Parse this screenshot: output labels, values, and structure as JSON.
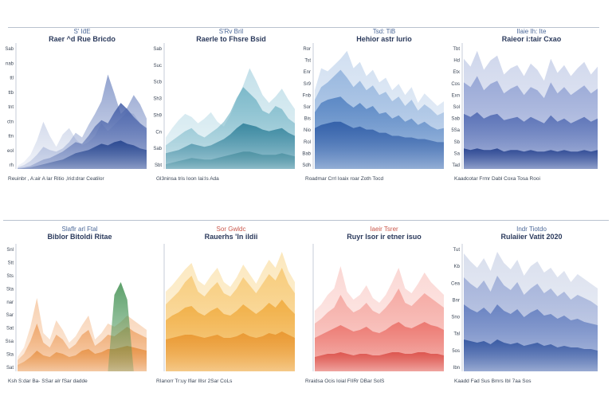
{
  "page": {
    "background": "#ffffff",
    "divider_color": "#b9c2cf"
  },
  "chart_data": [
    {
      "type": "area",
      "row": 1,
      "title_small": "S' Id̈E",
      "title": "Raer ^d Rue Bricdo",
      "title_color": "#2b4d86",
      "ytick_labels": [
        "Sab",
        "nab",
        "ttl",
        "ttb",
        "tnt",
        "ctn",
        "ttn",
        "eol",
        "rh"
      ],
      "xlabel": "Reuinbr , A:air A lar Ritio ,Irid:drar Ceatilor",
      "colors": [
        "#c7d0e6",
        "#7f93c7",
        "#3f5aa5",
        "#1f3f8a"
      ],
      "x": [
        0,
        1,
        2,
        3,
        4,
        5,
        6,
        7,
        8,
        9,
        10,
        11,
        12,
        13,
        14,
        15,
        16,
        17,
        18,
        19,
        20
      ],
      "series": [
        {
          "values": [
            4,
            9,
            18,
            36,
            60,
            42,
            28,
            44,
            52,
            38,
            30,
            34,
            42,
            58,
            48,
            56,
            64,
            72,
            70,
            58,
            48
          ]
        },
        {
          "values": [
            2,
            5,
            10,
            18,
            28,
            24,
            22,
            26,
            34,
            46,
            40,
            56,
            70,
            86,
            120,
            96,
            70,
            78,
            94,
            82,
            64
          ]
        },
        {
          "values": [
            1,
            2,
            4,
            8,
            12,
            14,
            18,
            22,
            28,
            34,
            32,
            42,
            54,
            62,
            58,
            72,
            84,
            76,
            66,
            58,
            52
          ]
        },
        {
          "values": [
            0,
            1,
            2,
            4,
            6,
            8,
            10,
            12,
            16,
            20,
            22,
            24,
            28,
            32,
            30,
            34,
            36,
            32,
            30,
            26,
            24
          ]
        }
      ]
    },
    {
      "type": "area",
      "row": 1,
      "title_small": "S'Rv Bril",
      "title": "Raerle to Fhsre Bsid",
      "title_color": "#2b4d86",
      "ytick_labels": [
        "Sab",
        "Suc",
        "Scb",
        "Sh3",
        "Sh9",
        "Cn",
        "Sab",
        "Sbt"
      ],
      "xlabel": "Gl3ninsa    tris    Ioon    Iai:ls    Ada",
      "colors": [
        "#b9dbe6",
        "#6fb2c4",
        "#2b7d97",
        "#4a8fa0"
      ],
      "x": [
        0,
        1,
        2,
        3,
        4,
        5,
        6,
        7,
        8,
        9,
        10,
        11,
        12,
        13,
        14,
        15,
        16,
        17,
        18,
        19,
        20
      ],
      "series": [
        {
          "values": [
            40,
            52,
            62,
            70,
            66,
            58,
            64,
            72,
            60,
            54,
            68,
            88,
            106,
            128,
            112,
            94,
            84,
            92,
            102,
            88,
            76
          ]
        },
        {
          "values": [
            30,
            36,
            42,
            48,
            52,
            44,
            40,
            46,
            52,
            60,
            72,
            90,
            104,
            96,
            88,
            74,
            70,
            80,
            76,
            64,
            58
          ]
        },
        {
          "values": [
            20,
            22,
            24,
            28,
            32,
            30,
            28,
            30,
            34,
            38,
            44,
            52,
            58,
            56,
            54,
            50,
            48,
            50,
            52,
            46,
            42
          ]
        },
        {
          "values": [
            6,
            8,
            10,
            12,
            14,
            13,
            12,
            12,
            14,
            16,
            18,
            20,
            22,
            22,
            20,
            18,
            18,
            18,
            20,
            18,
            16
          ]
        }
      ]
    },
    {
      "type": "area",
      "row": 1,
      "title_small": "Tsd: TiB",
      "title": "Hehior astr lurio",
      "title_color": "#2b4d86",
      "ytick_labels": [
        "Ror",
        "Tst",
        "Enr",
        "Sr9",
        "Fnb",
        "Sor",
        "Bis",
        "Nio",
        "Rol",
        "Bab",
        "Sdh"
      ],
      "xlabel": "Roadmar   Crrl   Ioaix   roar   Zoth   Tocd",
      "colors": [
        "#c8d9ee",
        "#8fb1dc",
        "#4f7fc0",
        "#2a58a4"
      ],
      "x": [
        0,
        1,
        2,
        3,
        4,
        5,
        6,
        7,
        8,
        9,
        10,
        11,
        12,
        13,
        14,
        15,
        16,
        17,
        18,
        19,
        20
      ],
      "series": [
        {
          "values": [
            100,
            128,
            124,
            132,
            140,
            150,
            128,
            136,
            118,
            126,
            110,
            116,
            100,
            108,
            94,
            104,
            84,
            96,
            88,
            80,
            86
          ]
        },
        {
          "values": [
            88,
            104,
            110,
            118,
            126,
            116,
            104,
            112,
            100,
            106,
            94,
            98,
            86,
            92,
            80,
            88,
            74,
            82,
            76,
            68,
            72
          ]
        },
        {
          "values": [
            72,
            84,
            88,
            90,
            92,
            84,
            78,
            84,
            76,
            80,
            70,
            72,
            64,
            68,
            60,
            64,
            56,
            60,
            54,
            50,
            52
          ]
        },
        {
          "values": [
            52,
            56,
            58,
            60,
            60,
            56,
            52,
            54,
            50,
            50,
            46,
            46,
            42,
            42,
            40,
            40,
            38,
            38,
            36,
            34,
            34
          ]
        }
      ]
    },
    {
      "type": "area",
      "row": 1,
      "title_small": "Ilaie Ih: Ite",
      "title": "Raieor i:tair Cxao",
      "title_color": "#2b4d86",
      "ytick_labels": [
        "Tbt",
        "Hd",
        "Etx",
        "Cos",
        "Exn",
        "Sol",
        "Sab",
        "5Sa",
        "Sb",
        "Sa",
        "Tad"
      ],
      "xlabel": "Kaadcotar   Frmr   Dabl   Coxa   Tosa   Rooi",
      "colors": [
        "#c6cfe8",
        "#8e9fd2",
        "#4c66b0",
        "#1f3c8a"
      ],
      "x": [
        0,
        1,
        2,
        3,
        4,
        5,
        6,
        7,
        8,
        9,
        10,
        11,
        12,
        13,
        14,
        15,
        16,
        17,
        18,
        19,
        20
      ],
      "series": [
        {
          "values": [
            140,
            130,
            150,
            126,
            138,
            144,
            120,
            128,
            132,
            118,
            134,
            126,
            112,
            140,
            122,
            132,
            118,
            128,
            136,
            120,
            130
          ]
        },
        {
          "values": [
            110,
            104,
            118,
            100,
            108,
            112,
            96,
            102,
            106,
            94,
            104,
            100,
            90,
            110,
            96,
            104,
            94,
            100,
            106,
            96,
            102
          ]
        },
        {
          "values": [
            70,
            66,
            72,
            64,
            68,
            70,
            62,
            64,
            66,
            60,
            66,
            62,
            58,
            68,
            60,
            64,
            58,
            62,
            66,
            60,
            64
          ]
        },
        {
          "values": [
            26,
            24,
            26,
            24,
            24,
            26,
            22,
            24,
            24,
            22,
            24,
            22,
            22,
            24,
            22,
            24,
            22,
            22,
            24,
            22,
            24
          ]
        }
      ]
    },
    {
      "type": "area",
      "row": 2,
      "title_small": "Slaflr arl Ftal",
      "title": "Biblor Bitoldi Ritae",
      "title_color": "#2b4d86",
      "ytick_labels": [
        "Snl",
        "Stt",
        "Sts",
        "Sta",
        "nar",
        "Sar",
        "Sat",
        "Ssa",
        "Sta",
        "Sat"
      ],
      "xlabel": "Ksh   S:dar   Ba-   SSar   aIr   fSar   dadde",
      "colors": [
        "#f6c7a1",
        "#eea060",
        "#e58b3a",
        "#3f8f4f"
      ],
      "x": [
        0,
        1,
        2,
        3,
        4,
        5,
        6,
        7,
        8,
        9,
        10,
        11,
        12,
        13,
        14,
        15,
        16,
        17,
        18,
        19,
        20
      ],
      "series": [
        {
          "values": [
            18,
            30,
            56,
            92,
            48,
            40,
            64,
            52,
            36,
            44,
            58,
            70,
            40,
            48,
            60,
            56,
            62,
            70,
            64,
            58,
            52
          ]
        },
        {
          "values": [
            14,
            22,
            38,
            60,
            36,
            30,
            46,
            40,
            28,
            34,
            46,
            52,
            32,
            38,
            46,
            44,
            50,
            56,
            50,
            46,
            42
          ]
        },
        {
          "values": [
            8,
            12,
            18,
            26,
            20,
            18,
            24,
            22,
            18,
            20,
            26,
            28,
            22,
            24,
            28,
            28,
            30,
            32,
            30,
            28,
            26
          ]
        },
        {
          "values": [
            0,
            0,
            0,
            0,
            0,
            0,
            0,
            0,
            0,
            0,
            0,
            0,
            0,
            0,
            0,
            96,
            112,
            90,
            0,
            0,
            0
          ]
        }
      ]
    },
    {
      "type": "area",
      "row": 2,
      "title_small": "Sor Gwldc",
      "title": "Rauerhs 'ln ildii",
      "title_color": "#c0392b",
      "ytick_labels": [],
      "xlabel": "RIanorr   Tr:uy   Ifiar   IIlsr   2Sar   CoLs",
      "colors": [
        "#fbe3b0",
        "#f7c770",
        "#f0a93a",
        "#e8922a"
      ],
      "x": [
        0,
        1,
        2,
        3,
        4,
        5,
        6,
        7,
        8,
        9,
        10,
        11,
        12,
        13,
        14,
        15,
        16,
        17,
        18,
        19,
        20
      ],
      "series": [
        {
          "values": [
            100,
            108,
            118,
            128,
            136,
            114,
            108,
            120,
            130,
            112,
            106,
            118,
            134,
            122,
            110,
            126,
            140,
            130,
            150,
            126,
            112
          ]
        },
        {
          "values": [
            84,
            92,
            100,
            112,
            120,
            100,
            94,
            104,
            112,
            98,
            94,
            104,
            118,
            108,
            98,
            110,
            122,
            114,
            130,
            110,
            98
          ]
        },
        {
          "values": [
            64,
            70,
            74,
            80,
            82,
            74,
            70,
            76,
            80,
            72,
            70,
            76,
            84,
            78,
            72,
            78,
            86,
            80,
            90,
            80,
            72
          ]
        },
        {
          "values": [
            40,
            42,
            44,
            46,
            46,
            44,
            42,
            44,
            46,
            42,
            42,
            44,
            48,
            44,
            42,
            44,
            48,
            46,
            50,
            46,
            42
          ]
        }
      ]
    },
    {
      "type": "area",
      "row": 2,
      "title_small": "Iaeir Tsrer",
      "title": "Ruyr lsor ir etner isuo",
      "title_color": "#c0392b",
      "ytick_labels": [],
      "xlabel": "Rraidsa   Ocis   Ioial   FIIRr   DBar   SolS",
      "colors": [
        "#fad0cc",
        "#f4a19a",
        "#ea6e66",
        "#d94a43"
      ],
      "x": [
        0,
        1,
        2,
        3,
        4,
        5,
        6,
        7,
        8,
        9,
        10,
        11,
        12,
        13,
        14,
        15,
        16,
        17,
        18,
        19,
        20
      ],
      "series": [
        {
          "values": [
            76,
            84,
            96,
            104,
            132,
            100,
            90,
            96,
            108,
            92,
            86,
            96,
            112,
            130,
            104,
            98,
            110,
            124,
            112,
            104,
            96
          ]
        },
        {
          "values": [
            60,
            66,
            74,
            80,
            96,
            82,
            74,
            78,
            86,
            76,
            72,
            80,
            90,
            104,
            86,
            82,
            90,
            98,
            92,
            86,
            80
          ]
        },
        {
          "values": [
            42,
            46,
            50,
            54,
            58,
            54,
            50,
            52,
            56,
            50,
            48,
            52,
            58,
            62,
            56,
            54,
            58,
            62,
            58,
            56,
            52
          ]
        },
        {
          "values": [
            18,
            20,
            22,
            22,
            24,
            22,
            20,
            22,
            22,
            20,
            20,
            22,
            24,
            24,
            22,
            22,
            24,
            24,
            22,
            22,
            20
          ]
        }
      ]
    },
    {
      "type": "area",
      "row": 2,
      "title_small": "Indr Tiotdo",
      "title": "Rulaiier Vatit 2020",
      "title_color": "#2b4d86",
      "ytick_labels": [
        "Tut",
        "Kb",
        "Cea",
        "Bnr",
        "Sno",
        "Tal",
        "5os",
        "Ibn"
      ],
      "xlabel": "Kaadd   Fad   Sus   Bmrs   IbI   7aa   Sos",
      "colors": [
        "#d2d9ea",
        "#9aaad6",
        "#5d79bd",
        "#2c4f9c"
      ],
      "x": [
        0,
        1,
        2,
        3,
        4,
        5,
        6,
        7,
        8,
        9,
        10,
        11,
        12,
        13,
        14,
        15,
        16,
        17,
        18,
        19,
        20
      ],
      "series": [
        {
          "values": [
            148,
            138,
            130,
            142,
            126,
            150,
            136,
            128,
            140,
            120,
            132,
            138,
            124,
            130,
            118,
            126,
            112,
            122,
            116,
            110,
            104
          ]
        },
        {
          "values": [
            118,
            110,
            104,
            114,
            100,
            120,
            108,
            102,
            112,
            96,
            104,
            110,
            98,
            104,
            94,
            100,
            90,
            96,
            92,
            88,
            82
          ]
        },
        {
          "values": [
            84,
            78,
            74,
            80,
            72,
            84,
            76,
            72,
            78,
            68,
            74,
            78,
            70,
            72,
            66,
            70,
            64,
            66,
            62,
            60,
            58
          ]
        },
        {
          "values": [
            40,
            38,
            36,
            38,
            34,
            40,
            36,
            34,
            36,
            32,
            34,
            36,
            32,
            34,
            30,
            32,
            30,
            30,
            28,
            28,
            26
          ]
        }
      ]
    }
  ]
}
